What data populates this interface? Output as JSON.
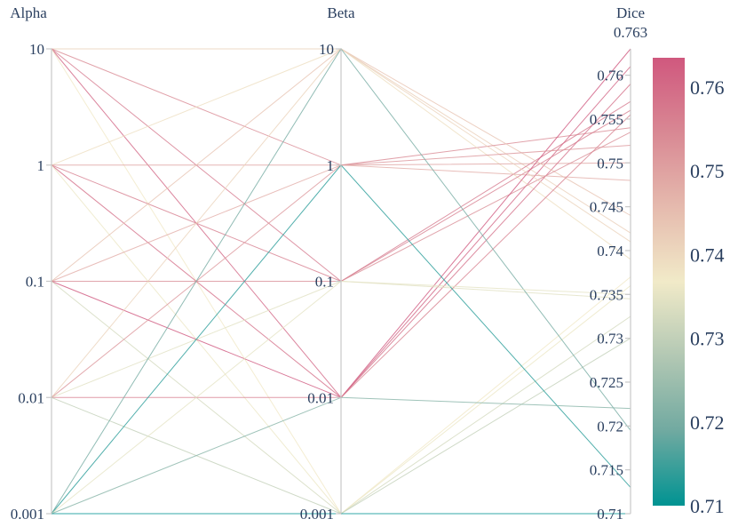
{
  "chart_data": {
    "type": "parallel_coordinates",
    "dimensions": [
      {
        "label": "Alpha",
        "scale": "log",
        "range": [
          0.001,
          10
        ],
        "ticks": [
          {
            "value": 0.001,
            "label": "0.001"
          },
          {
            "value": 0.01,
            "label": "0.01"
          },
          {
            "value": 0.1,
            "label": "0.1"
          },
          {
            "value": 1,
            "label": "1"
          },
          {
            "value": 10,
            "label": "10"
          }
        ]
      },
      {
        "label": "Beta",
        "scale": "log",
        "range": [
          0.001,
          10
        ],
        "ticks": [
          {
            "value": 0.001,
            "label": "0.001"
          },
          {
            "value": 0.01,
            "label": "0.01"
          },
          {
            "value": 0.1,
            "label": "0.1"
          },
          {
            "value": 1,
            "label": "1"
          },
          {
            "value": 10,
            "label": "10"
          }
        ]
      },
      {
        "label": "Dice",
        "scale": "linear",
        "range": [
          0.71,
          0.763
        ],
        "max_label": "0.763",
        "ticks": [
          {
            "value": 0.71,
            "label": "0.71"
          },
          {
            "value": 0.715,
            "label": "0.715"
          },
          {
            "value": 0.72,
            "label": "0.72"
          },
          {
            "value": 0.725,
            "label": "0.725"
          },
          {
            "value": 0.73,
            "label": "0.73"
          },
          {
            "value": 0.735,
            "label": "0.735"
          },
          {
            "value": 0.74,
            "label": "0.74"
          },
          {
            "value": 0.745,
            "label": "0.745"
          },
          {
            "value": 0.75,
            "label": "0.75"
          },
          {
            "value": 0.755,
            "label": "0.755"
          },
          {
            "value": 0.76,
            "label": "0.76"
          }
        ]
      }
    ],
    "rows": [
      {
        "alpha": 10,
        "beta": 10,
        "dice": 0.742
      },
      {
        "alpha": 10,
        "beta": 1,
        "dice": 0.754
      },
      {
        "alpha": 10,
        "beta": 0.1,
        "dice": 0.757
      },
      {
        "alpha": 10,
        "beta": 0.01,
        "dice": 0.761
      },
      {
        "alpha": 10,
        "beta": 0.001,
        "dice": 0.737
      },
      {
        "alpha": 1,
        "beta": 10,
        "dice": 0.739
      },
      {
        "alpha": 1,
        "beta": 1,
        "dice": 0.75
      },
      {
        "alpha": 1,
        "beta": 0.1,
        "dice": 0.756
      },
      {
        "alpha": 1,
        "beta": 0.01,
        "dice": 0.759
      },
      {
        "alpha": 1,
        "beta": 0.001,
        "dice": 0.736
      },
      {
        "alpha": 0.1,
        "beta": 10,
        "dice": 0.744
      },
      {
        "alpha": 0.1,
        "beta": 1,
        "dice": 0.748
      },
      {
        "alpha": 0.1,
        "beta": 0.1,
        "dice": 0.7535
      },
      {
        "alpha": 0.1,
        "beta": 0.01,
        "dice": 0.7635
      },
      {
        "alpha": 0.1,
        "beta": 0.001,
        "dice": 0.7325
      },
      {
        "alpha": 0.01,
        "beta": 10,
        "dice": 0.741
      },
      {
        "alpha": 0.01,
        "beta": 1,
        "dice": 0.752
      },
      {
        "alpha": 0.01,
        "beta": 0.1,
        "dice": 0.7345
      },
      {
        "alpha": 0.01,
        "beta": 0.01,
        "dice": 0.7555
      },
      {
        "alpha": 0.01,
        "beta": 0.001,
        "dice": 0.73
      },
      {
        "alpha": 0.001,
        "beta": 10,
        "dice": 0.7195
      },
      {
        "alpha": 0.001,
        "beta": 1,
        "dice": 0.713
      },
      {
        "alpha": 0.001,
        "beta": 0.1,
        "dice": 0.735
      },
      {
        "alpha": 0.001,
        "beta": 0.01,
        "dice": 0.722
      },
      {
        "alpha": 0.001,
        "beta": 0.001,
        "dice": 0.71
      }
    ],
    "colorscale": {
      "range": [
        0.71,
        0.7635
      ],
      "stops": [
        {
          "t": 0,
          "color": "#009392"
        },
        {
          "t": 0.17,
          "color": "#72aaa1"
        },
        {
          "t": 0.33,
          "color": "#b1c7b3"
        },
        {
          "t": 0.5,
          "color": "#f1eac8"
        },
        {
          "t": 0.67,
          "color": "#e5b9ad"
        },
        {
          "t": 0.83,
          "color": "#d98994"
        },
        {
          "t": 1,
          "color": "#d0587e"
        }
      ],
      "ticks": [
        {
          "value": 0.71,
          "label": "0.71"
        },
        {
          "value": 0.72,
          "label": "0.72"
        },
        {
          "value": 0.73,
          "label": "0.73"
        },
        {
          "value": 0.74,
          "label": "0.74"
        },
        {
          "value": 0.75,
          "label": "0.75"
        },
        {
          "value": 0.76,
          "label": "0.76"
        }
      ]
    }
  }
}
